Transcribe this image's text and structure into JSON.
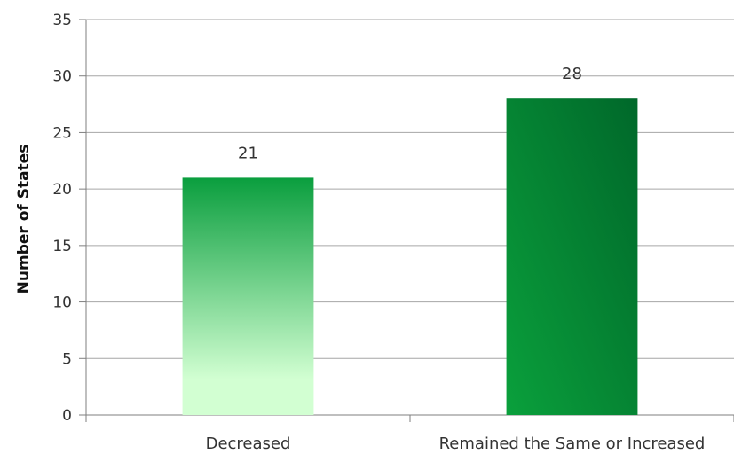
{
  "chart_data": {
    "type": "bar",
    "title": "",
    "xlabel": "",
    "ylabel": "Number of States",
    "ylim": [
      0,
      35
    ],
    "yticks": [
      0,
      5,
      10,
      15,
      20,
      25,
      30,
      35
    ],
    "grid": true,
    "legend": "none",
    "categories": [
      "Decreased",
      "Remained the Same or Increased"
    ],
    "values": [
      21,
      28
    ],
    "colors": {
      "decreased_top": "#0a9e3e",
      "decreased_bottom": "#d2ffd2",
      "increased_top": "#00682a",
      "increased_bottom": "#0aa03c",
      "gridline": "#a6a6a6",
      "axis": "#7f7f7f"
    }
  }
}
